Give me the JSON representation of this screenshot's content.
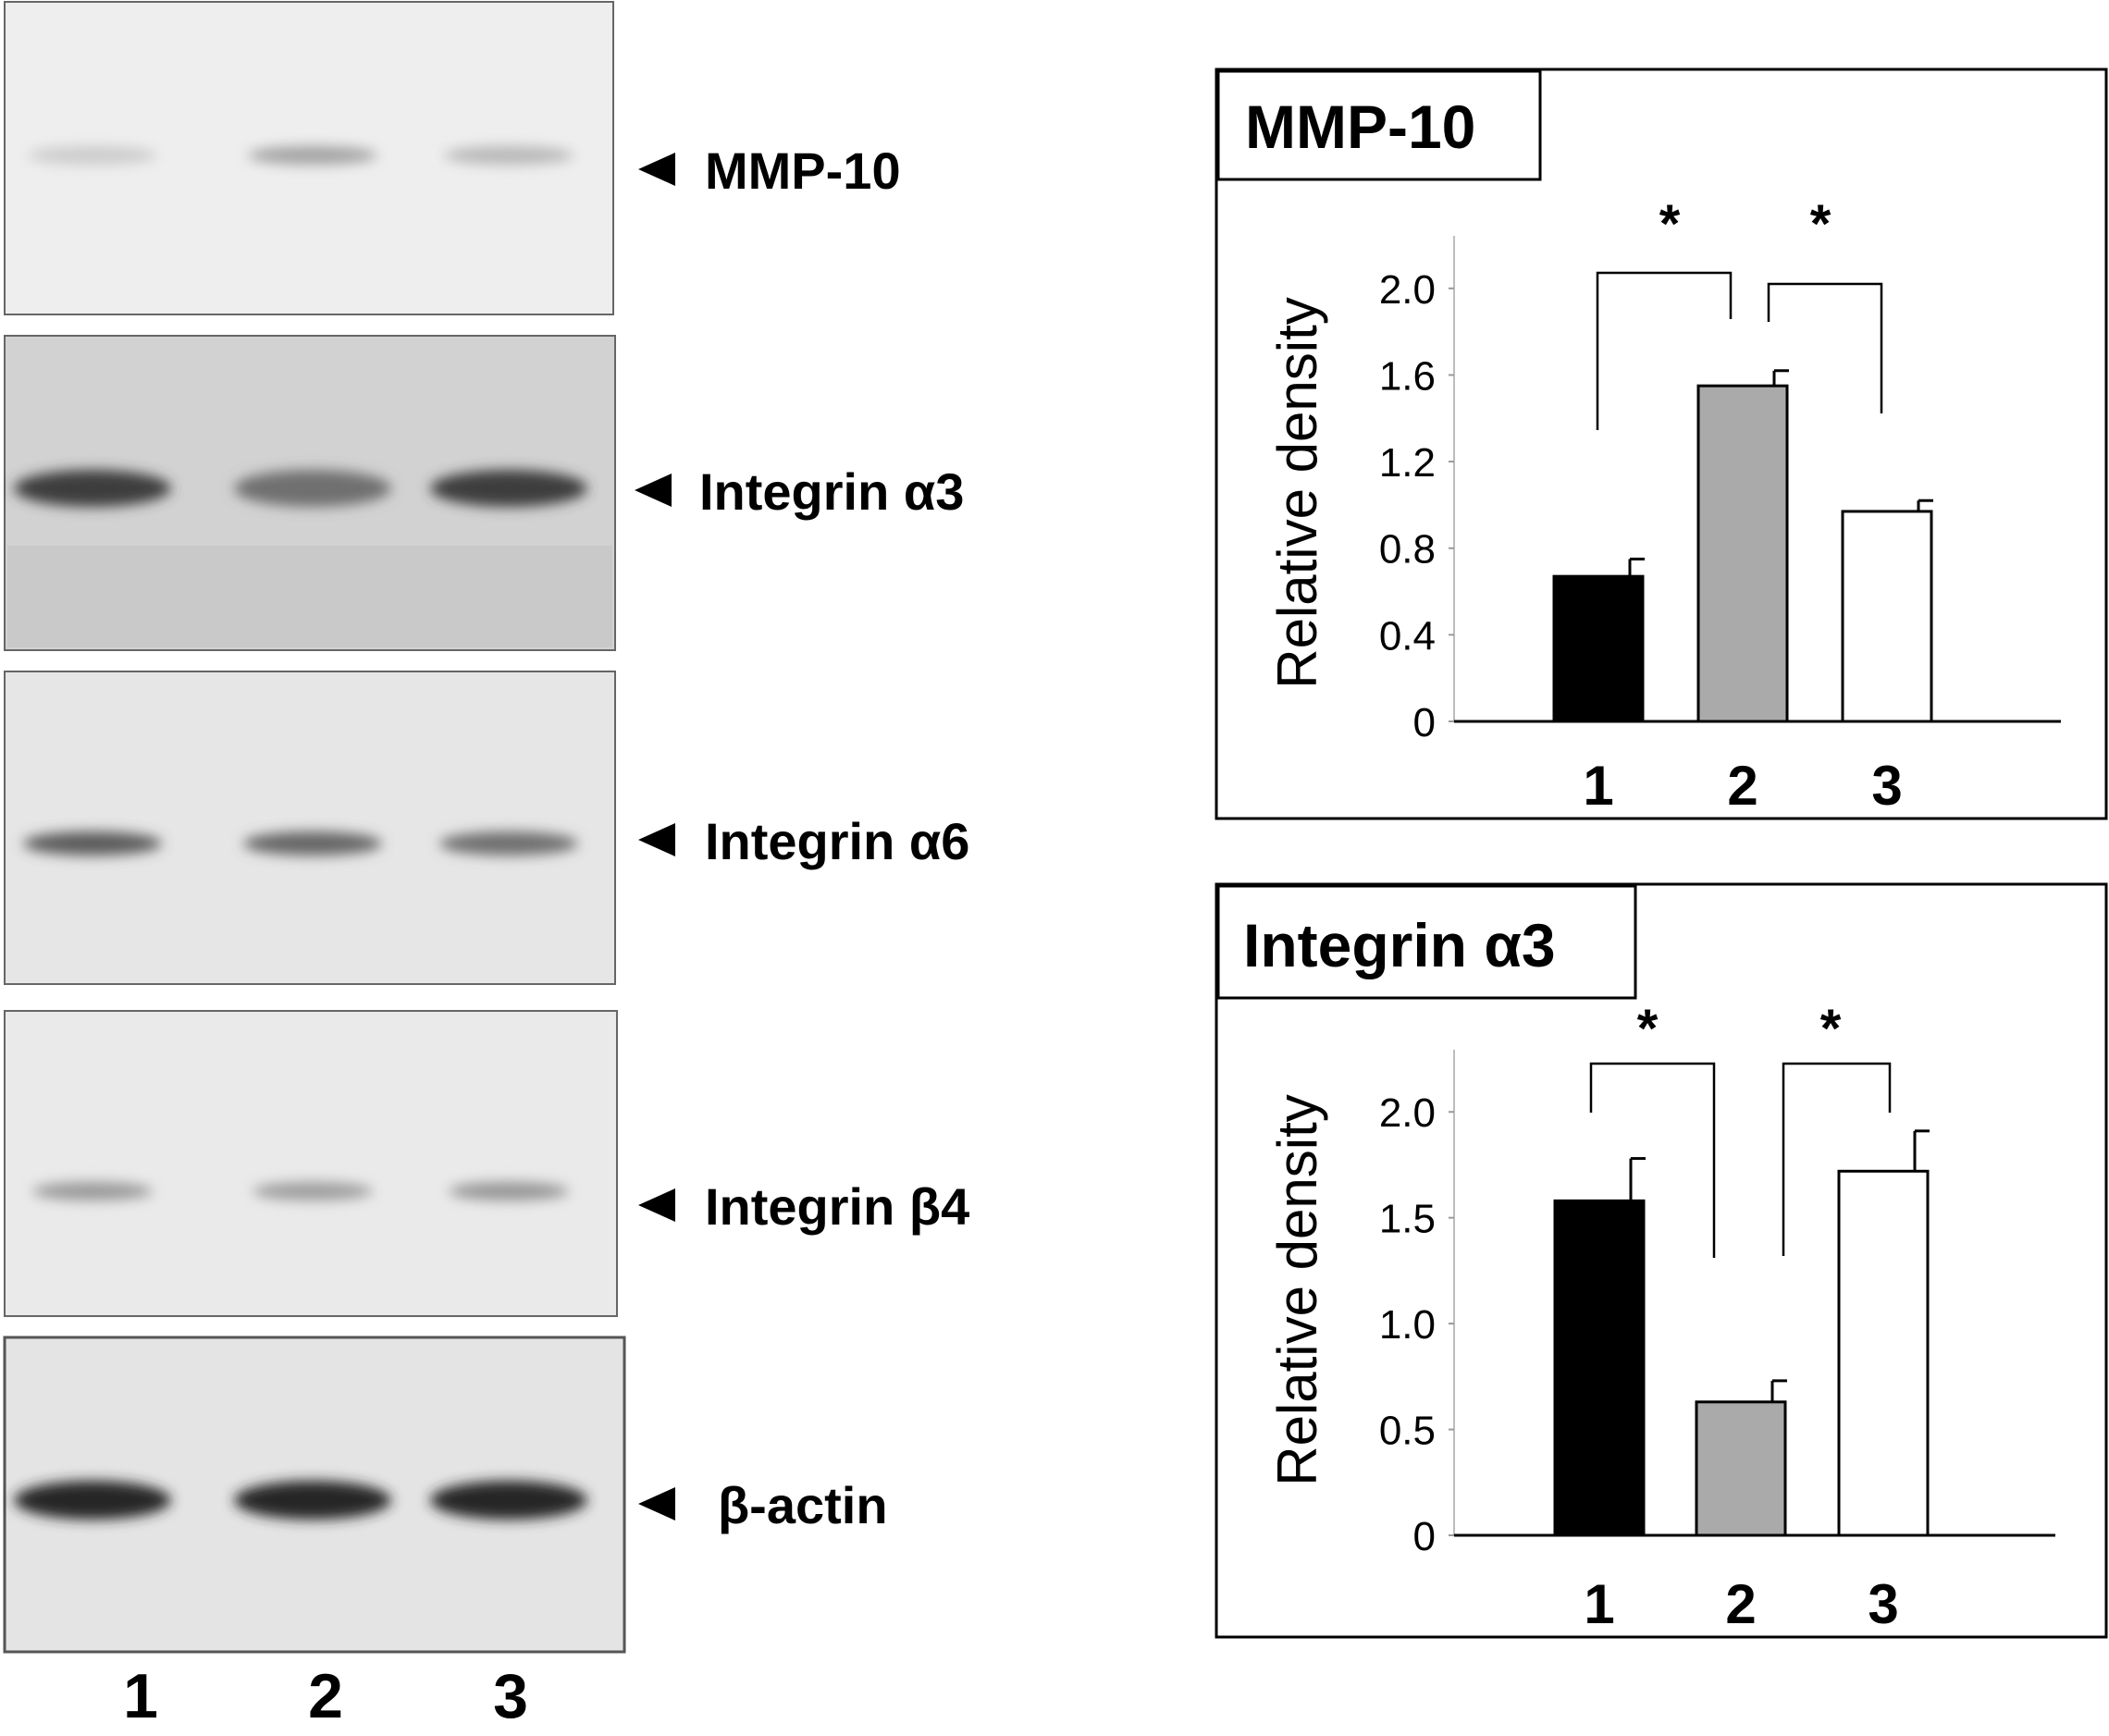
{
  "blots": {
    "panels": [
      {
        "label": "MMP-10",
        "bands": [
          {
            "lane": 1,
            "intensity": 0.15
          },
          {
            "lane": 2,
            "intensity": 0.35
          },
          {
            "lane": 3,
            "intensity": 0.25
          }
        ]
      },
      {
        "label": "Integrin α3",
        "bands": [
          {
            "lane": 1,
            "intensity": 0.85
          },
          {
            "lane": 2,
            "intensity": 0.6
          },
          {
            "lane": 3,
            "intensity": 0.85
          }
        ]
      },
      {
        "label": "Integrin α6",
        "bands": [
          {
            "lane": 1,
            "intensity": 0.7
          },
          {
            "lane": 2,
            "intensity": 0.65
          },
          {
            "lane": 3,
            "intensity": 0.6
          }
        ]
      },
      {
        "label": "Integrin β4",
        "bands": [
          {
            "lane": 1,
            "intensity": 0.4
          },
          {
            "lane": 2,
            "intensity": 0.38
          },
          {
            "lane": 3,
            "intensity": 0.42
          }
        ]
      },
      {
        "label": "β-actin",
        "bands": [
          {
            "lane": 1,
            "intensity": 0.95
          },
          {
            "lane": 2,
            "intensity": 0.95
          },
          {
            "lane": 3,
            "intensity": 0.95
          }
        ]
      }
    ],
    "lane_labels": [
      "1",
      "2",
      "3"
    ]
  },
  "chart_data": [
    {
      "type": "bar",
      "title": "MMP-10",
      "ylabel": "Relative density",
      "categories": [
        "1",
        "2",
        "3"
      ],
      "values": [
        0.67,
        1.55,
        0.97
      ],
      "errors": [
        0.08,
        0.07,
        0.05
      ],
      "colors": [
        "#000000",
        "#aaaaaa",
        "#ffffff"
      ],
      "ylim": [
        0,
        2.2
      ],
      "yticks": [
        0,
        0.4,
        0.8,
        1.2,
        1.6,
        2.0
      ],
      "ytick_labels": [
        "0",
        "0.4",
        "0.8",
        "1.2",
        "1.6",
        "2.0"
      ],
      "significance": [
        {
          "from": 0,
          "to": 1,
          "label": "*"
        },
        {
          "from": 1,
          "to": 2,
          "label": "*"
        }
      ],
      "grid": false
    },
    {
      "type": "bar",
      "title": "Integrin α3",
      "ylabel": "Relative density",
      "categories": [
        "1",
        "2",
        "3"
      ],
      "values": [
        1.58,
        0.63,
        1.72
      ],
      "errors": [
        0.2,
        0.1,
        0.19
      ],
      "colors": [
        "#000000",
        "#aaaaaa",
        "#ffffff"
      ],
      "ylim": [
        0,
        2.25
      ],
      "yticks": [
        0,
        0.5,
        1.0,
        1.5,
        2.0
      ],
      "ytick_labels": [
        "0",
        "0.5",
        "1.0",
        "1.5",
        "2.0"
      ],
      "significance": [
        {
          "from": 0,
          "to": 1,
          "label": "*"
        },
        {
          "from": 1,
          "to": 2,
          "label": "*"
        }
      ],
      "grid": false
    }
  ]
}
